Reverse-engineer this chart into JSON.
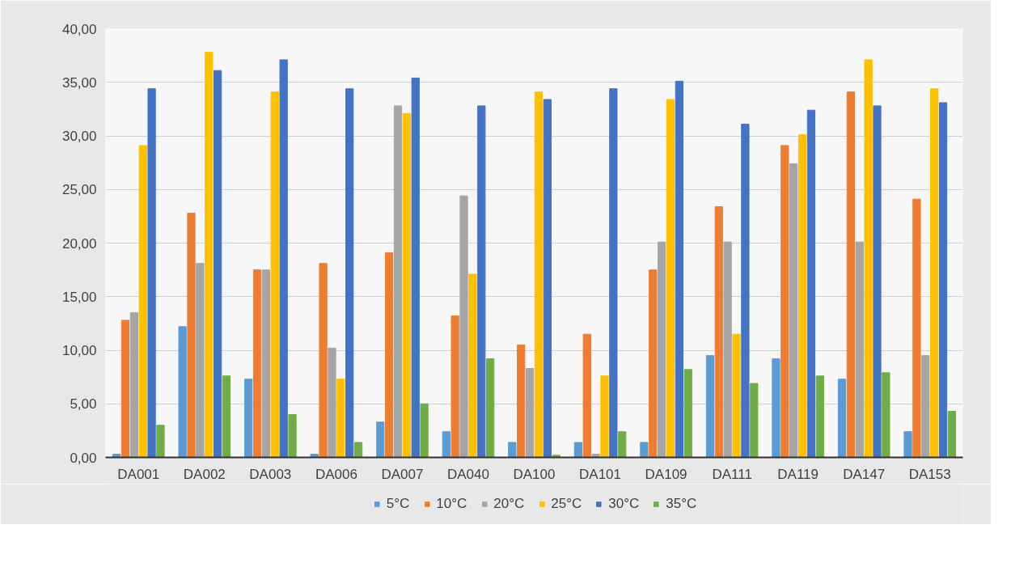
{
  "chart_data": {
    "type": "bar",
    "categories": [
      "DA001",
      "DA002",
      "DA003",
      "DA006",
      "DA007",
      "DA040",
      "DA100",
      "DA101",
      "DA109",
      "DA111",
      "DA119",
      "DA147",
      "DA153"
    ],
    "series": [
      {
        "name": "5°C",
        "color": "#5b9bd5",
        "values": [
          0.3,
          12.2,
          7.3,
          0.3,
          3.3,
          2.4,
          1.4,
          1.4,
          1.4,
          9.5,
          9.2,
          7.3,
          2.4
        ]
      },
      {
        "name": "10°C",
        "color": "#ed7d31",
        "values": [
          12.8,
          22.8,
          17.5,
          18.1,
          19.1,
          13.2,
          10.5,
          11.5,
          17.5,
          23.4,
          29.1,
          34.1,
          24.1
        ]
      },
      {
        "name": "20°C",
        "color": "#a5a5a5",
        "values": [
          13.5,
          18.1,
          17.5,
          10.2,
          32.8,
          24.4,
          8.3,
          0.3,
          20.1,
          20.1,
          27.4,
          20.1,
          9.5
        ]
      },
      {
        "name": "25°C",
        "color": "#ffc000",
        "values": [
          29.1,
          37.8,
          34.1,
          7.3,
          32.1,
          17.1,
          34.1,
          7.6,
          33.4,
          11.5,
          30.1,
          37.1,
          34.4
        ]
      },
      {
        "name": "30°C",
        "color": "#4472c4",
        "values": [
          34.4,
          36.1,
          37.1,
          34.4,
          35.4,
          32.8,
          33.4,
          34.4,
          35.1,
          31.1,
          32.4,
          32.8,
          33.1
        ]
      },
      {
        "name": "35°C",
        "color": "#70ad47",
        "values": [
          3.0,
          7.6,
          4.0,
          1.4,
          5.0,
          9.2,
          0.2,
          2.4,
          8.2,
          6.9,
          7.6,
          7.9,
          4.3
        ]
      }
    ],
    "ylim": [
      0,
      40
    ],
    "yticks": [
      {
        "value": 0,
        "label": "0,00"
      },
      {
        "value": 5,
        "label": "5,00"
      },
      {
        "value": 10,
        "label": "10,00"
      },
      {
        "value": 15,
        "label": "15,00"
      },
      {
        "value": 20,
        "label": "20,00"
      },
      {
        "value": 25,
        "label": "25,00"
      },
      {
        "value": 30,
        "label": "30,00"
      },
      {
        "value": 35,
        "label": "35,00"
      },
      {
        "value": 40,
        "label": "40,00"
      }
    ],
    "grid": "y",
    "legend": "bottom"
  }
}
